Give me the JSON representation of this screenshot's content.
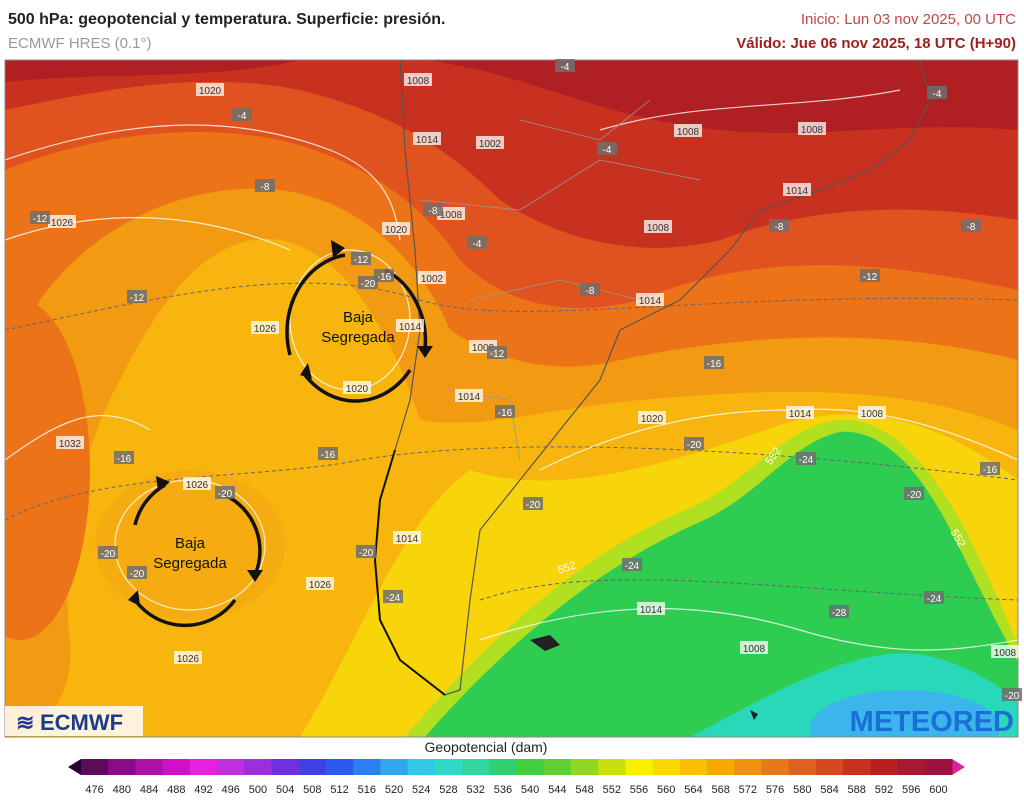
{
  "header": {
    "title": "500 hPa: geopotencial y temperatura. Superficie: presión.",
    "model": "ECMWF HRES (0.1°)",
    "init": "Inicio: Lun 03 nov 2025, 00 UTC",
    "valid": "Válido: Jue 06 nov 2025, 18 UTC (H+90)"
  },
  "annotations": [
    {
      "lines": [
        "Baja",
        "Segregada"
      ]
    },
    {
      "lines": [
        "Baja",
        "Segregada"
      ]
    }
  ],
  "isobar_labels": [
    "1020",
    "1026",
    "1026",
    "1032",
    "1026",
    "1026",
    "1026",
    "1020",
    "1020",
    "1008",
    "1014",
    "1002",
    "1008",
    "1002",
    "1014",
    "1008",
    "1014",
    "1008",
    "1008",
    "1014",
    "1008",
    "1014",
    "1020",
    "1014",
    "1008",
    "1014",
    "1014",
    "1008",
    "1008"
  ],
  "temperature_labels": [
    "-4",
    "-4",
    "-4",
    "-4",
    "-8",
    "-8",
    "-4",
    "-8",
    "-8",
    "-12",
    "-12",
    "-12",
    "-16",
    "-20",
    "-12",
    "-8",
    "-12",
    "-16",
    "-16",
    "-20",
    "-16",
    "-16",
    "-24",
    "-16",
    "-20",
    "-20",
    "-20",
    "-20",
    "-20",
    "-20",
    "-24",
    "-24",
    "-28",
    "-24",
    "-20"
  ],
  "geopotential_labels": [
    "552",
    "552",
    "552"
  ],
  "colorbar": {
    "label": "Geopotencial (dam)",
    "ticks": [
      476,
      480,
      484,
      488,
      492,
      496,
      500,
      504,
      508,
      512,
      516,
      520,
      524,
      528,
      532,
      536,
      540,
      544,
      548,
      552,
      556,
      560,
      564,
      568,
      572,
      576,
      580,
      584,
      588,
      592,
      596,
      600
    ],
    "colors": [
      "#5c0a5c",
      "#8a0a8a",
      "#b00fa8",
      "#d010c8",
      "#e820e0",
      "#c030e0",
      "#9830e0",
      "#7030e0",
      "#4040e8",
      "#2a5af0",
      "#2a80f0",
      "#30a8f0",
      "#30c8e8",
      "#30d8c8",
      "#30d8a0",
      "#30d070",
      "#40d040",
      "#60d030",
      "#90d820",
      "#c8e010",
      "#f8f000",
      "#f8d800",
      "#f8c000",
      "#f8a800",
      "#f09010",
      "#e87818",
      "#e06020",
      "#d84820",
      "#c83020",
      "#b82020",
      "#a81830",
      "#a01040"
    ],
    "under_color": "#2a0030",
    "over_color": "#e0209a"
  },
  "logos": {
    "left": "ECMWF",
    "right": "METEORED"
  }
}
